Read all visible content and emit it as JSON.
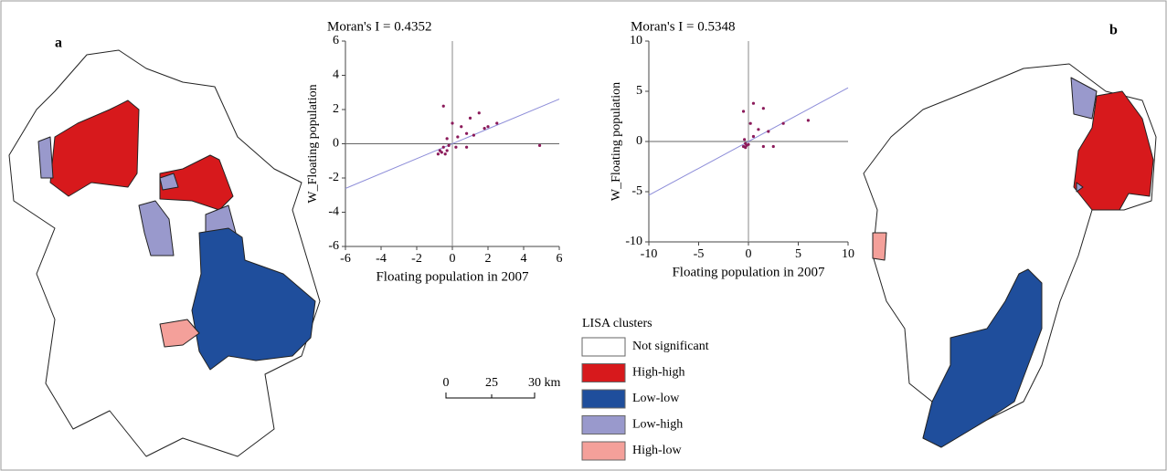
{
  "panels": [
    "a",
    "b"
  ],
  "chart_data": [
    {
      "type": "scatter",
      "title": "Moran's I = 0.4352",
      "trendline_slope": 0.4352,
      "x_label": "Floating population in 2007",
      "y_label": "W_Floating population",
      "xlim": [
        -6,
        6
      ],
      "ylim": [
        -6,
        6
      ],
      "xticks": [
        -6,
        -4,
        -2,
        0,
        2,
        4,
        6
      ],
      "yticks": [
        -6,
        -4,
        -2,
        0,
        2,
        4,
        6
      ],
      "color": "#8b1a5a",
      "x": [
        -0.5,
        0,
        0.5,
        1,
        1.5,
        2,
        2.5,
        0.3,
        0.8,
        1.2,
        -0.3,
        0.2,
        4.9,
        0.8,
        -0.6,
        -0.7,
        -0.4,
        -0.5,
        -0.3,
        1.8,
        -0.8,
        -0.2
      ],
      "y": [
        2.2,
        1.2,
        1,
        1.5,
        1.8,
        1,
        1.2,
        0.4,
        0.6,
        0.5,
        0.3,
        -0.2,
        -0.1,
        -0.2,
        -0.5,
        -0.4,
        -0.6,
        -0.2,
        -0.4,
        0.9,
        -0.6,
        -0.1
      ]
    },
    {
      "type": "scatter",
      "title": "Moran's I = 0.5348",
      "trendline_slope": 0.5348,
      "x_label": "Floating population in 2007",
      "y_label": "W_Floating population",
      "xlim": [
        -10,
        10
      ],
      "ylim": [
        -10,
        10
      ],
      "xticks": [
        -10,
        -5,
        0,
        5,
        10
      ],
      "yticks": [
        -10,
        -5,
        0,
        5,
        10
      ],
      "color": "#8b1a5a",
      "x": [
        0.5,
        1.5,
        -0.5,
        3.5,
        6,
        1,
        2,
        0.5,
        -0.3,
        -0.5,
        -0.2,
        0,
        2.5,
        1.5,
        -0.4,
        0.2,
        -0.3
      ],
      "y": [
        3.8,
        3.3,
        3,
        1.8,
        2.1,
        1.2,
        1,
        0.5,
        -0.2,
        -0.5,
        -0.4,
        -0.3,
        -0.5,
        -0.5,
        0.2,
        1.8,
        -0.6
      ]
    }
  ],
  "legend": {
    "title": "LISA clusters",
    "items": [
      {
        "name": "Not significant",
        "color": "#ffffff"
      },
      {
        "name": "High-high",
        "color": "#d7191c"
      },
      {
        "name": "Low-low",
        "color": "#1f4e9c"
      },
      {
        "name": "Low-high",
        "color": "#9999cc"
      },
      {
        "name": "High-low",
        "color": "#f4a09a"
      }
    ]
  },
  "scale_bar": {
    "labels": [
      "0",
      "25",
      "30 km"
    ]
  }
}
